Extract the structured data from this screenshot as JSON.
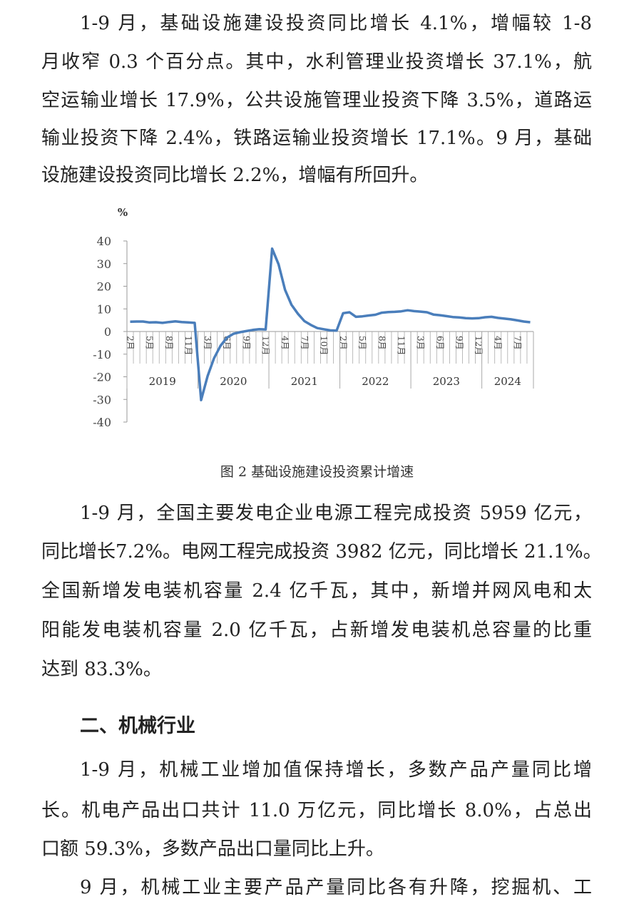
{
  "paragraph1": [
    "1-9 月，基础设施建设投资同比增长 4.1%，增幅较 1-8",
    "月收窄 0.3 个百分点。其中，水利管理业投资增长 37.1%，航",
    "空运输业增长 17.9%，公共设施管理业投资下降 3.5%，道路运",
    "输业投资下降 2.4%，铁路运输业投资增长 17.1%。9 月，基础",
    "设施建设投资同比增长 2.2%，增幅有所回升。"
  ],
  "figure_caption": "图 2 基础设施建设投资累计增速",
  "paragraph2": [
    "1-9 月，全国主要发电企业电源工程完成投资 5959 亿元，",
    "同比增长7.2%。电网工程完成投资 3982 亿元，同比增长 21.1%。",
    "全国新增发电装机容量 2.4 亿千瓦，其中，新增并网风电和太",
    "阳能发电装机容量 2.0 亿千瓦，占新增发电装机总容量的比重",
    "达到 83.3%。"
  ],
  "section_heading": "二、机械行业",
  "paragraph3": [
    "1-9 月，机械工业增加值保持增长，多数产品产量同比增",
    "长。机电产品出口共计 11.0 万亿元，同比增长 8.0%，占总出",
    "口额 59.3%，多数产品出口量同比上升。"
  ],
  "paragraph4": [
    "9 月，机械工业主要产品产量同比各有升降，挖掘机、工"
  ],
  "chart_data": {
    "type": "line",
    "title": "",
    "ylabel": "%",
    "ylim": [
      -40,
      40
    ],
    "yticks": [
      40,
      30,
      20,
      10,
      0,
      -10,
      -20,
      -30,
      -40
    ],
    "grid": false,
    "line_color": "#4a7ebb",
    "years": [
      {
        "label": "2019",
        "months": [
          2,
          3,
          4,
          5,
          6,
          7,
          8,
          9,
          10,
          11,
          12
        ]
      },
      {
        "label": "2020",
        "months": [
          2,
          3,
          4,
          5,
          6,
          7,
          8,
          9,
          10,
          11,
          12
        ]
      },
      {
        "label": "2021",
        "months": [
          2,
          3,
          4,
          5,
          6,
          7,
          8,
          9,
          10,
          11,
          12
        ]
      },
      {
        "label": "2022",
        "months": [
          2,
          3,
          4,
          5,
          6,
          7,
          8,
          9,
          10,
          11,
          12
        ]
      },
      {
        "label": "2023",
        "months": [
          2,
          3,
          4,
          5,
          6,
          7,
          8,
          9,
          10,
          11,
          12
        ]
      },
      {
        "label": "2024",
        "months": [
          2,
          3,
          4,
          5,
          6,
          7,
          8,
          9
        ]
      }
    ],
    "month_tick_labels": [
      "2月",
      "5月",
      "8月",
      "11月",
      "3月",
      "6月",
      "9月",
      "12月",
      "4月",
      "7月",
      "10月",
      "2月",
      "5月",
      "8月",
      "11月",
      "3月",
      "6月",
      "9月",
      "12月",
      "4月",
      "7月"
    ],
    "values": [
      4.3,
      4.4,
      4.4,
      4.0,
      4.1,
      3.8,
      4.2,
      4.5,
      4.2,
      4.0,
      3.8,
      -30.3,
      -19.7,
      -11.8,
      -6.3,
      -2.7,
      -1.0,
      -0.3,
      0.2,
      0.7,
      1.0,
      0.9,
      36.6,
      29.7,
      18.4,
      11.8,
      7.8,
      4.6,
      2.9,
      1.5,
      1.0,
      0.5,
      0.4,
      8.1,
      8.5,
      6.5,
      6.7,
      7.1,
      7.4,
      8.3,
      8.6,
      8.7,
      8.9,
      9.4,
      9.0,
      8.8,
      8.5,
      7.5,
      7.2,
      6.8,
      6.4,
      6.2,
      5.9,
      5.8,
      5.9,
      6.3,
      6.5,
      6.0,
      5.7,
      5.4,
      4.9,
      4.4,
      4.1
    ]
  }
}
